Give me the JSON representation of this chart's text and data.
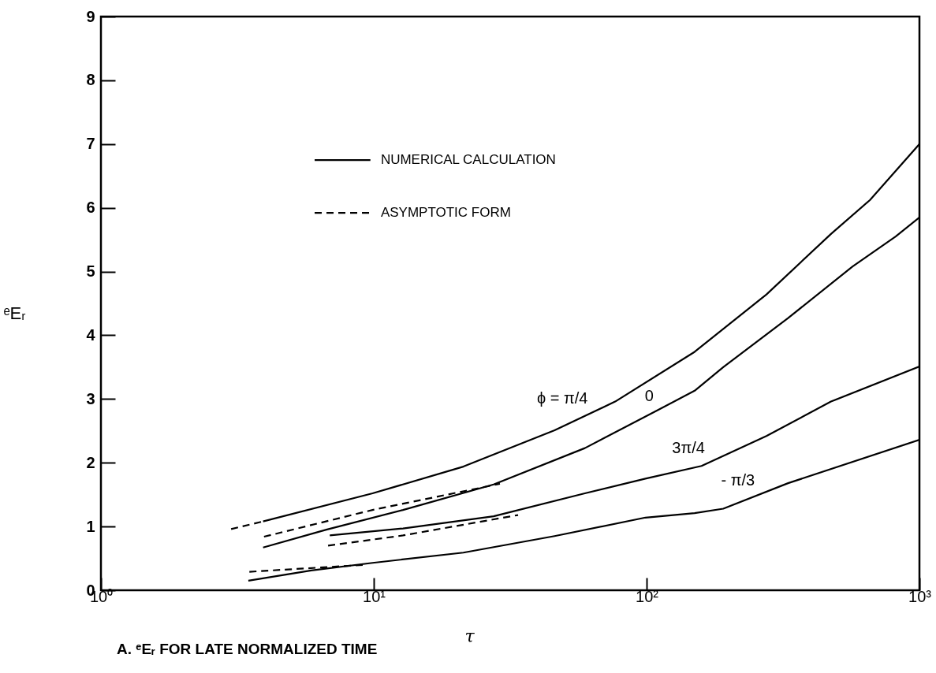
{
  "chart_data": {
    "type": "line",
    "xlabel": "τ",
    "ylabel": "ᵉEᵣ",
    "log": "x",
    "xlim": [
      1,
      1000
    ],
    "ylim": [
      0,
      9
    ],
    "xticks": [
      {
        "value": 1,
        "label": "10⁰"
      },
      {
        "value": 10,
        "label": "10¹"
      },
      {
        "value": 100,
        "label": "10²"
      },
      {
        "value": 1000,
        "label": "10³"
      }
    ],
    "yticks": [
      0,
      1,
      2,
      3,
      4,
      5,
      6,
      7,
      8,
      9
    ],
    "grid": false,
    "legend": "top left",
    "series": [
      {
        "name": "NUMERICAL CALCULATION",
        "color": "#000000",
        "line_style": "solid",
        "x": [
          3.93,
          9.9,
          21.3,
          46,
          76.7,
          150,
          275,
          474,
          658,
          1000
        ],
        "values": [
          1.08,
          1.52,
          1.94,
          2.51,
          2.96,
          3.74,
          4.64,
          5.59,
          6.12,
          7.0
        ]
      },
      {
        "color": "#000000",
        "line_style": "solid",
        "x": [
          3.93,
          6.7,
          12.8,
          27.5,
          59.4,
          107,
          150,
          191,
          330,
          569,
          818,
          1000
        ],
        "values": [
          0.67,
          0.95,
          1.26,
          1.66,
          2.23,
          2.8,
          3.13,
          3.5,
          4.27,
          5.08,
          5.55,
          5.85
        ]
      },
      {
        "color": "#000000",
        "line_style": "solid",
        "x": [
          6.9,
          12.8,
          27.5,
          59.4,
          99,
          159,
          275,
          474,
          1000
        ],
        "values": [
          0.86,
          0.97,
          1.16,
          1.52,
          1.75,
          1.95,
          2.42,
          2.96,
          3.51
        ]
      },
      {
        "color": "#000000",
        "line_style": "solid",
        "x": [
          3.47,
          5.9,
          9.9,
          21.3,
          46,
          99,
          150,
          191,
          330,
          1000
        ],
        "values": [
          0.15,
          0.31,
          0.43,
          0.59,
          0.85,
          1.14,
          1.21,
          1.28,
          1.68,
          2.36
        ]
      },
      {
        "name": "ASYMPTOTIC FORM",
        "color": "#000000",
        "line_style": "dashed",
        "x": [
          3.0,
          3.93
        ],
        "values": [
          0.96,
          1.08
        ]
      },
      {
        "color": "#000000",
        "line_style": "dashed",
        "x": [
          3.96,
          9.9,
          29
        ],
        "values": [
          0.84,
          1.26,
          1.67
        ]
      },
      {
        "color": "#000000",
        "line_style": "dashed",
        "x": [
          6.8,
          12.8,
          33.8
        ],
        "values": [
          0.7,
          0.86,
          1.18
        ]
      },
      {
        "color": "#000000",
        "line_style": "dashed",
        "x": [
          3.5,
          9.4
        ],
        "values": [
          0.29,
          0.4
        ]
      }
    ],
    "annotations": [
      {
        "text": "ϕ = π/4",
        "x": 62.5,
        "y": 2.78
      },
      {
        "text": "0",
        "x": 109,
        "y": 2.82
      },
      {
        "text": "3π/4",
        "x": 168,
        "y": 2.0
      },
      {
        "text": "- π/3",
        "x": 256,
        "y": 1.5
      },
      "A.  ᵉEᵣ  FOR LATE NORMALIZED TIME"
    ]
  }
}
